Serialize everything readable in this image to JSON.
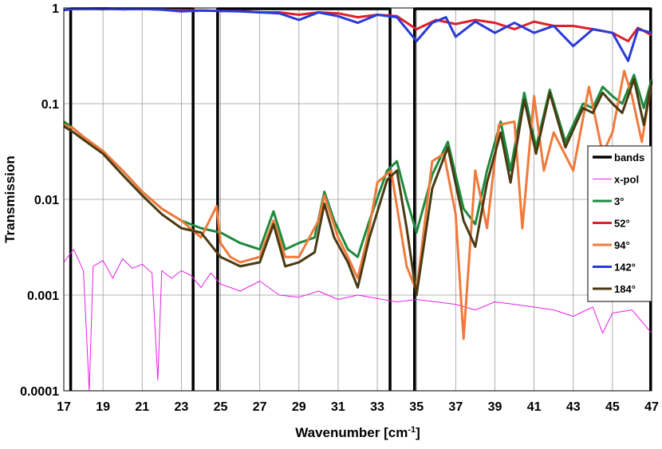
{
  "chart_data": {
    "type": "line",
    "title": "",
    "xlabel_main": "Wavenumber [cm",
    "xlabel_sup": "-1",
    "xlabel_end": "]",
    "ylabel": "Transmission",
    "xlim": [
      17,
      47
    ],
    "ylim": [
      0.0001,
      1
    ],
    "yscale": "log",
    "grid": true,
    "legend_position": "right",
    "x_ticks": [
      "17",
      "19",
      "21",
      "23",
      "25",
      "27",
      "29",
      "31",
      "33",
      "35",
      "37",
      "39",
      "41",
      "43",
      "45",
      "47"
    ],
    "y_ticks": [
      "1",
      "0.1",
      "0.01",
      "0.001",
      "0.0001"
    ],
    "bands": [
      17.35,
      23.6,
      24.85,
      33.65,
      34.9,
      46.95
    ],
    "legend": [
      {
        "name": "bands",
        "color": "#000000",
        "width": 3.5
      },
      {
        "name": "x-pol",
        "color": "#e81ee8",
        "width": 1
      },
      {
        "name": "3°",
        "color": "#1e8a3c",
        "width": 3
      },
      {
        "name": "52°",
        "color": "#e0202a",
        "width": 3
      },
      {
        "name": "94°",
        "color": "#f07a3c",
        "width": 3
      },
      {
        "name": "142°",
        "color": "#2a3ad8",
        "width": 3
      },
      {
        "name": "184°",
        "color": "#4a3a12",
        "width": 3
      }
    ],
    "series": [
      {
        "name": "x-pol",
        "color": "#e81ee8",
        "width": 1,
        "x": [
          17,
          17.5,
          18,
          18.3,
          18.5,
          19,
          19.5,
          20,
          20.5,
          21,
          21.5,
          21.8,
          22,
          22.5,
          23,
          23.5,
          24,
          24.5,
          25,
          25.5,
          26,
          27,
          28,
          29,
          30,
          31,
          32,
          33,
          34,
          35,
          36,
          37,
          38,
          39,
          40,
          41,
          42,
          43,
          44,
          44.5,
          45,
          46,
          47
        ],
        "y": [
          0.0022,
          0.003,
          0.0018,
          0.0001,
          0.002,
          0.0023,
          0.0015,
          0.0024,
          0.0019,
          0.0021,
          0.0017,
          0.00013,
          0.0018,
          0.0015,
          0.0018,
          0.0016,
          0.0012,
          0.0017,
          0.0013,
          0.0012,
          0.0011,
          0.0014,
          0.001,
          0.00095,
          0.0011,
          0.0009,
          0.001,
          0.00092,
          0.00085,
          0.0009,
          0.00085,
          0.0008,
          0.0007,
          0.00085,
          0.0008,
          0.00075,
          0.0007,
          0.0006,
          0.00075,
          0.0004,
          0.00065,
          0.0007,
          0.0004
        ]
      },
      {
        "name": "3°",
        "color": "#1e8a3c",
        "width": 3,
        "x": [
          17,
          17.5,
          18,
          19,
          20,
          21,
          22,
          23,
          24,
          25,
          26,
          27,
          27.7,
          28.3,
          29,
          29.8,
          30.3,
          30.8,
          31.5,
          32,
          32.6,
          33.5,
          34,
          34.5,
          35,
          35.8,
          36.6,
          37.4,
          38,
          38.6,
          39.3,
          39.8,
          40.5,
          41.1,
          41.8,
          42.6,
          43.5,
          44,
          44.5,
          45,
          45.5,
          46.1,
          46.6,
          47
        ],
        "y": [
          0.065,
          0.055,
          0.045,
          0.032,
          0.02,
          0.012,
          0.008,
          0.006,
          0.005,
          0.0045,
          0.0035,
          0.003,
          0.0075,
          0.003,
          0.0035,
          0.004,
          0.012,
          0.006,
          0.003,
          0.0025,
          0.006,
          0.02,
          0.025,
          0.01,
          0.0045,
          0.018,
          0.04,
          0.008,
          0.0055,
          0.02,
          0.065,
          0.02,
          0.13,
          0.035,
          0.14,
          0.04,
          0.1,
          0.09,
          0.15,
          0.12,
          0.1,
          0.2,
          0.09,
          0.18
        ]
      },
      {
        "name": "52°",
        "color": "#e0202a",
        "width": 3,
        "x": [
          17,
          17.5,
          18,
          19,
          20,
          21,
          22,
          23,
          24,
          25,
          26,
          27,
          28,
          29,
          30,
          31,
          32,
          33,
          34,
          35,
          36,
          37,
          38,
          39,
          40,
          41,
          42,
          43,
          44,
          45,
          45.8,
          46.3,
          47
        ],
        "y": [
          0.95,
          0.98,
          0.98,
          0.99,
          0.97,
          0.98,
          0.96,
          0.95,
          0.94,
          0.93,
          0.93,
          0.9,
          0.9,
          0.85,
          0.9,
          0.88,
          0.8,
          0.85,
          0.82,
          0.6,
          0.75,
          0.68,
          0.75,
          0.7,
          0.6,
          0.72,
          0.65,
          0.65,
          0.6,
          0.55,
          0.45,
          0.62,
          0.52
        ]
      },
      {
        "name": "94°",
        "color": "#f07a3c",
        "width": 3,
        "x": [
          17,
          17.5,
          18,
          19,
          20,
          21,
          22,
          23,
          24,
          24.8,
          25,
          25.5,
          26,
          27,
          27.7,
          28.3,
          29,
          30,
          30.3,
          31,
          31.5,
          32,
          32.5,
          33,
          33.7,
          34.5,
          35,
          35.8,
          36.4,
          37,
          37.4,
          38,
          38.6,
          39.2,
          40,
          40.4,
          41,
          41.5,
          42,
          43,
          43.8,
          44.5,
          45,
          45.6,
          46,
          46.5,
          47
        ],
        "y": [
          0.06,
          0.055,
          0.045,
          0.032,
          0.02,
          0.012,
          0.008,
          0.006,
          0.004,
          0.0085,
          0.0035,
          0.0025,
          0.0022,
          0.0025,
          0.006,
          0.0025,
          0.0025,
          0.006,
          0.011,
          0.004,
          0.0025,
          0.0015,
          0.004,
          0.015,
          0.02,
          0.002,
          0.0011,
          0.025,
          0.03,
          0.007,
          0.00035,
          0.02,
          0.005,
          0.06,
          0.065,
          0.005,
          0.12,
          0.02,
          0.05,
          0.02,
          0.15,
          0.03,
          0.05,
          0.22,
          0.12,
          0.04,
          0.17
        ]
      },
      {
        "name": "142°",
        "color": "#2a3ad8",
        "width": 3,
        "x": [
          17,
          17.5,
          18,
          19,
          20,
          21,
          22,
          23,
          24,
          25,
          26,
          27,
          28,
          29,
          30,
          31,
          32,
          33,
          34,
          35,
          35.8,
          36.5,
          37,
          38,
          39,
          40,
          41,
          42,
          43,
          44,
          45,
          45.8,
          46.3,
          47
        ],
        "y": [
          0.95,
          0.98,
          0.98,
          0.99,
          0.97,
          0.98,
          0.96,
          0.92,
          0.94,
          0.93,
          0.92,
          0.9,
          0.88,
          0.75,
          0.9,
          0.82,
          0.7,
          0.85,
          0.8,
          0.45,
          0.7,
          0.8,
          0.5,
          0.72,
          0.55,
          0.7,
          0.55,
          0.65,
          0.4,
          0.6,
          0.55,
          0.28,
          0.6,
          0.55
        ]
      },
      {
        "name": "184°",
        "color": "#4a3a12",
        "width": 3,
        "x": [
          17,
          17.5,
          18,
          19,
          20,
          21,
          22,
          23,
          24,
          25,
          26,
          27,
          27.7,
          28.3,
          29,
          29.8,
          30.3,
          30.8,
          31.5,
          32,
          32.6,
          33.5,
          34,
          34.5,
          35,
          35.8,
          36.6,
          37.4,
          38,
          38.6,
          39.3,
          39.8,
          40.5,
          41.1,
          41.8,
          42.6,
          43.5,
          44,
          44.5,
          45,
          45.5,
          46.1,
          46.6,
          47
        ],
        "y": [
          0.058,
          0.05,
          0.042,
          0.03,
          0.018,
          0.011,
          0.007,
          0.005,
          0.0045,
          0.0025,
          0.002,
          0.0022,
          0.0055,
          0.002,
          0.0022,
          0.0028,
          0.009,
          0.004,
          0.0022,
          0.0012,
          0.004,
          0.016,
          0.02,
          0.005,
          0.001,
          0.013,
          0.035,
          0.006,
          0.0032,
          0.015,
          0.05,
          0.015,
          0.11,
          0.03,
          0.13,
          0.035,
          0.09,
          0.08,
          0.13,
          0.1,
          0.08,
          0.18,
          0.06,
          0.17
        ]
      }
    ]
  }
}
